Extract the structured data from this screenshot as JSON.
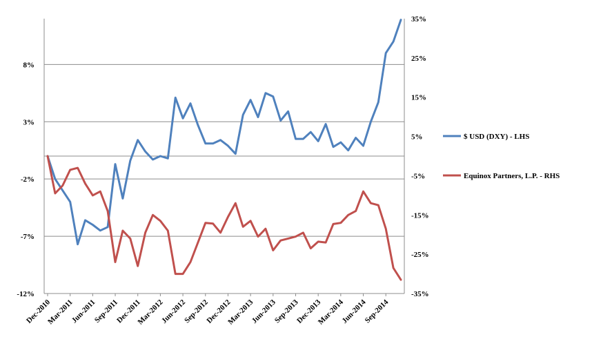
{
  "chart_data": {
    "type": "line",
    "title": "",
    "xlabel": "",
    "ylabel": "",
    "x_tick_labels": [
      "Dec-2010",
      "Mar-2011",
      "Jun-2011",
      "Sep-2011",
      "Dec-2011",
      "Mar-2012",
      "Jun-2012",
      "Sep-2012",
      "Dec-2012",
      "Mar-2013",
      "Jun-2013",
      "Sep-2013",
      "Dec-2013",
      "Mar-2014",
      "Jun-2014",
      "Sep-2014"
    ],
    "x": [
      "Dec-2010",
      "Jan-2011",
      "Feb-2011",
      "Mar-2011",
      "Apr-2011",
      "May-2011",
      "Jun-2011",
      "Jul-2011",
      "Aug-2011",
      "Sep-2011",
      "Oct-2011",
      "Nov-2011",
      "Dec-2011",
      "Jan-2012",
      "Feb-2012",
      "Mar-2012",
      "Apr-2012",
      "May-2012",
      "Jun-2012",
      "Jul-2012",
      "Aug-2012",
      "Sep-2012",
      "Oct-2012",
      "Nov-2012",
      "Dec-2012",
      "Jan-2013",
      "Feb-2013",
      "Mar-2013",
      "Apr-2013",
      "May-2013",
      "Jun-2013",
      "Jul-2013",
      "Aug-2013",
      "Sep-2013",
      "Oct-2013",
      "Nov-2013",
      "Dec-2013",
      "Jan-2014",
      "Feb-2014",
      "Mar-2014",
      "Apr-2014",
      "May-2014",
      "Jun-2014",
      "Jul-2014",
      "Aug-2014",
      "Sep-2014",
      "Oct-2014",
      "Nov-2014"
    ],
    "left_axis": {
      "ylim": [
        -12,
        12
      ],
      "tick_values": [
        -12,
        -7,
        -2,
        3,
        8
      ],
      "tick_labels": [
        "-12%",
        "-7%",
        "-2%",
        "3%",
        "8%"
      ]
    },
    "right_axis": {
      "ylim": [
        -35,
        35
      ],
      "tick_values": [
        -35,
        -25,
        -15,
        -5,
        5,
        15,
        25,
        35
      ],
      "tick_labels": [
        "-35%",
        "-25%",
        "-15%",
        "-5%",
        "5%",
        "15%",
        "25%",
        "35%"
      ]
    },
    "gridlines": "horizontal",
    "legend_position": "right",
    "series": [
      {
        "name": "$ USD  (DXY) - LHS",
        "axis": "left",
        "color": "#4F81BD",
        "values": [
          0,
          -2,
          -3,
          -4,
          -7.7,
          -5.6,
          -6,
          -6.5,
          -6.2,
          -0.7,
          -3.7,
          -0.4,
          1.4,
          0.4,
          -0.3,
          0,
          -0.2,
          5.1,
          3.3,
          4.6,
          2.7,
          1.1,
          1.1,
          1.4,
          0.9,
          0.2,
          3.6,
          4.9,
          3.4,
          5.5,
          5.2,
          3.1,
          3.9,
          1.5,
          1.5,
          2.1,
          1.3,
          2.8,
          0.8,
          1.2,
          0.5,
          1.6,
          0.9,
          3,
          4.7,
          9,
          10,
          11.9
        ]
      },
      {
        "name": "Equinox Partners, L.P. - RHS",
        "axis": "right",
        "color": "#C0504D",
        "values": [
          0,
          -9.5,
          -7.5,
          -3.5,
          -3,
          -7,
          -10,
          -9,
          -14,
          -27,
          -19,
          -21,
          -28,
          -19.5,
          -15,
          -16.5,
          -19,
          -30,
          -30,
          -27,
          -22,
          -17,
          -17.2,
          -19.5,
          -15.5,
          -12,
          -18,
          -16.5,
          -20.5,
          -18.5,
          -24,
          -21.5,
          -21,
          -20.5,
          -19.5,
          -23.5,
          -21.8,
          -22,
          -17.3,
          -17,
          -15,
          -14,
          -9,
          -12,
          -12.5,
          -18.5,
          -28.5,
          -31.5
        ]
      }
    ]
  }
}
